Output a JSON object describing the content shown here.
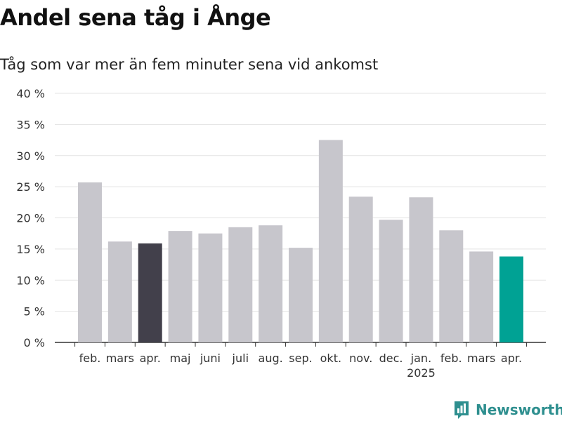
{
  "chart_data": {
    "type": "bar",
    "title": "Andel sena tåg i Ånge",
    "subtitle": "Tåg som var mer än fem minuter sena vid ankomst",
    "categories": [
      "feb.",
      "mars",
      "apr.",
      "maj",
      "juni",
      "juli",
      "aug.",
      "sep.",
      "okt.",
      "nov.",
      "dec.",
      "jan.",
      "feb.",
      "mars",
      "apr."
    ],
    "year_labels": [
      "",
      "",
      "",
      "",
      "",
      "",
      "",
      "",
      "",
      "",
      "",
      "2025",
      "",
      "",
      ""
    ],
    "values": [
      25.7,
      16.2,
      15.9,
      17.9,
      17.5,
      18.5,
      18.8,
      15.2,
      32.5,
      23.4,
      19.7,
      23.3,
      18.0,
      14.6,
      13.8
    ],
    "ylim": [
      0,
      40
    ],
    "yticks": [
      0,
      5,
      10,
      15,
      20,
      25,
      30,
      35,
      40
    ],
    "ytick_labels": [
      "0 %",
      "5 %",
      "10 %",
      "15 %",
      "20 %",
      "25 %",
      "30 %",
      "35 %",
      "40 %"
    ],
    "highlight": {
      "2": "#42404b",
      "14": "#00a294"
    },
    "bar_color": "#c7c6cc",
    "grid": true
  },
  "brand": {
    "name": "Newsworthy"
  }
}
